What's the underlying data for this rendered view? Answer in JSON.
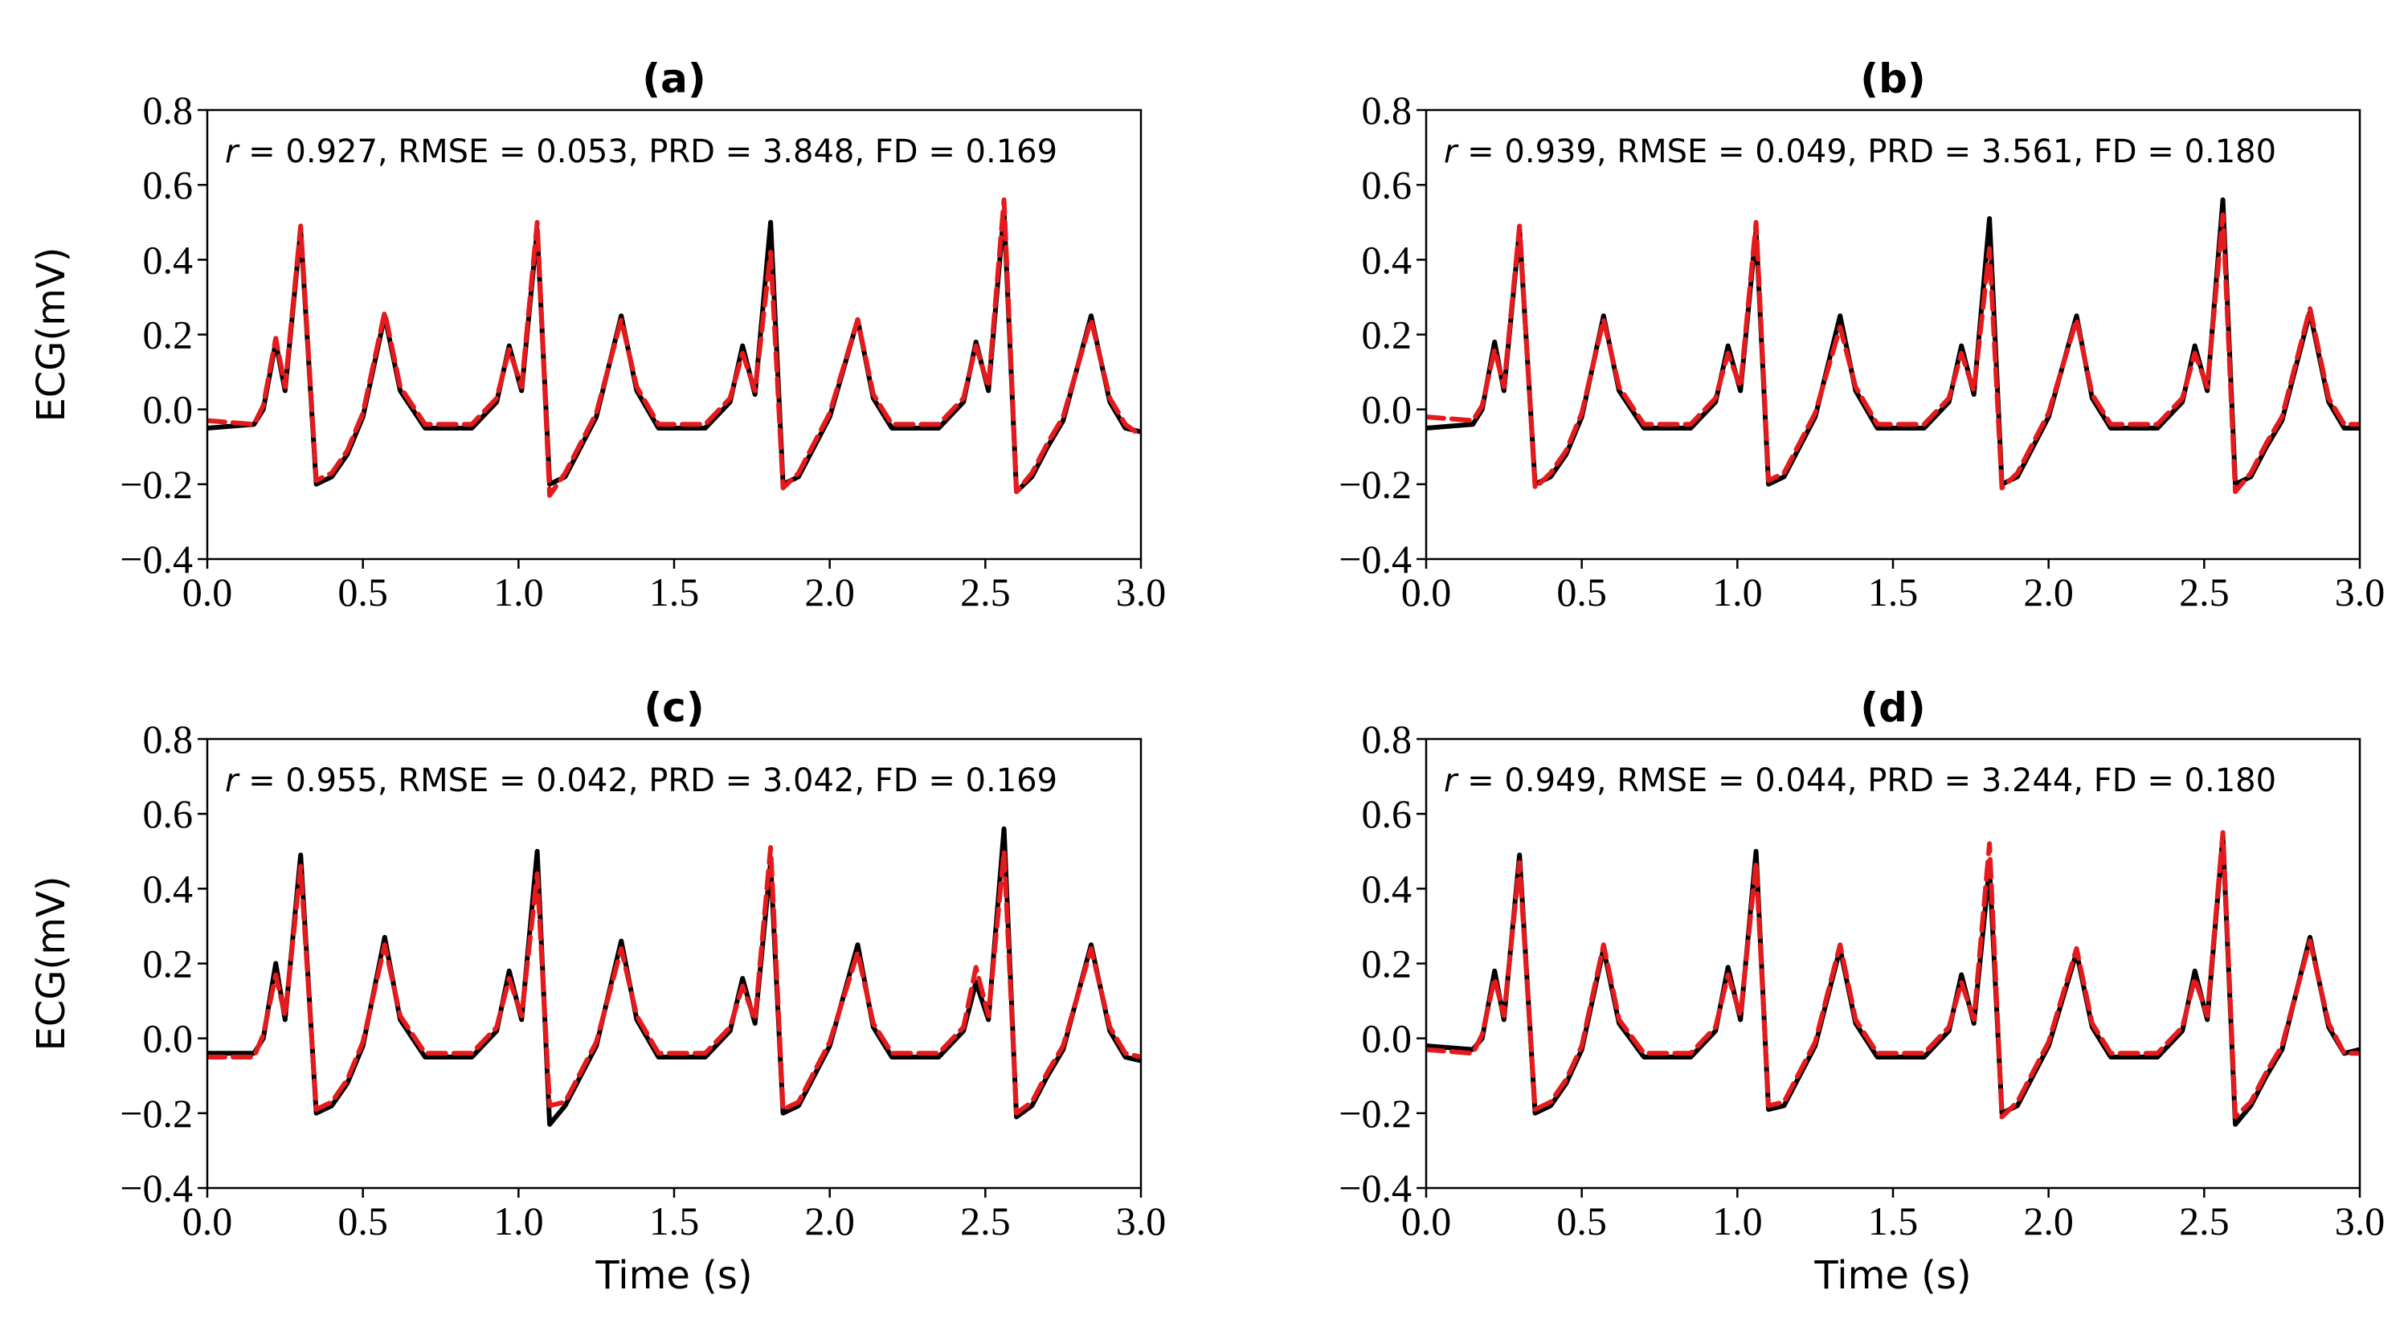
{
  "chart_data": [
    {
      "type": "line",
      "title": "(a)",
      "annotation": {
        "var": "r",
        "text": " = 0.927, RMSE = 0.053, PRD = 3.848, FD = 0.169"
      },
      "xlabel": "",
      "ylabel": "ECG(mV)",
      "xlim": [
        0.0,
        3.0
      ],
      "ylim": [
        -0.4,
        0.8
      ],
      "xticks": [
        "0.0",
        "0.5",
        "1.0",
        "1.5",
        "2.0",
        "2.5",
        "3.0"
      ],
      "yticks": [
        "−0.4",
        "−0.2",
        "0.0",
        "0.2",
        "0.4",
        "0.6",
        "0.8"
      ],
      "grid": false,
      "series": [
        {
          "style": "solid",
          "color": "#000000",
          "x": [
            0.0,
            0.15,
            0.18,
            0.22,
            0.25,
            0.3,
            0.35,
            0.4,
            0.45,
            0.5,
            0.57,
            0.62,
            0.7,
            0.85,
            0.93,
            0.97,
            1.01,
            1.06,
            1.1,
            1.15,
            1.2,
            1.25,
            1.33,
            1.38,
            1.45,
            1.6,
            1.68,
            1.72,
            1.76,
            1.81,
            1.85,
            1.9,
            1.95,
            2.0,
            2.09,
            2.14,
            2.2,
            2.35,
            2.43,
            2.47,
            2.51,
            2.56,
            2.6,
            2.65,
            2.7,
            2.75,
            2.84,
            2.9,
            2.95,
            3.0
          ],
          "y": [
            -0.05,
            -0.04,
            0.0,
            0.18,
            0.05,
            0.48,
            -0.2,
            -0.18,
            -0.12,
            -0.02,
            0.25,
            0.05,
            -0.05,
            -0.05,
            0.02,
            0.17,
            0.05,
            0.48,
            -0.2,
            -0.18,
            -0.1,
            -0.02,
            0.25,
            0.05,
            -0.05,
            -0.05,
            0.02,
            0.17,
            0.04,
            0.5,
            -0.2,
            -0.18,
            -0.1,
            -0.02,
            0.24,
            0.03,
            -0.05,
            -0.05,
            0.02,
            0.18,
            0.05,
            0.53,
            -0.22,
            -0.18,
            -0.1,
            -0.03,
            0.25,
            0.02,
            -0.05,
            -0.06
          ]
        },
        {
          "style": "dashed",
          "color": "#e41a1c",
          "x": [
            0.0,
            0.15,
            0.18,
            0.22,
            0.25,
            0.3,
            0.35,
            0.4,
            0.45,
            0.5,
            0.57,
            0.62,
            0.7,
            0.85,
            0.93,
            0.97,
            1.01,
            1.06,
            1.1,
            1.15,
            1.2,
            1.25,
            1.33,
            1.38,
            1.45,
            1.6,
            1.68,
            1.72,
            1.76,
            1.81,
            1.85,
            1.9,
            1.95,
            2.0,
            2.09,
            2.14,
            2.2,
            2.35,
            2.43,
            2.47,
            2.51,
            2.56,
            2.6,
            2.65,
            2.7,
            2.75,
            2.84,
            2.9,
            2.95,
            3.0
          ],
          "y": [
            -0.03,
            -0.04,
            0.01,
            0.19,
            0.06,
            0.49,
            -0.19,
            -0.17,
            -0.11,
            -0.01,
            0.26,
            0.06,
            -0.04,
            -0.04,
            0.03,
            0.16,
            0.06,
            0.5,
            -0.23,
            -0.17,
            -0.09,
            -0.01,
            0.24,
            0.06,
            -0.04,
            -0.04,
            0.03,
            0.15,
            0.05,
            0.42,
            -0.21,
            -0.17,
            -0.09,
            -0.01,
            0.24,
            0.04,
            -0.04,
            -0.04,
            0.03,
            0.17,
            0.06,
            0.56,
            -0.22,
            -0.17,
            -0.09,
            -0.02,
            0.24,
            0.03,
            -0.04,
            -0.07
          ]
        }
      ]
    },
    {
      "type": "line",
      "title": "(b)",
      "annotation": {
        "var": "r",
        "text": " = 0.939, RMSE = 0.049, PRD = 3.561, FD = 0.180"
      },
      "xlabel": "",
      "ylabel": "",
      "xlim": [
        0.0,
        3.0
      ],
      "ylim": [
        -0.4,
        0.8
      ],
      "xticks": [
        "0.0",
        "0.5",
        "1.0",
        "1.5",
        "2.0",
        "2.5",
        "3.0"
      ],
      "yticks": [
        "−0.4",
        "−0.2",
        "0.0",
        "0.2",
        "0.4",
        "0.6",
        "0.8"
      ],
      "grid": false,
      "series": [
        {
          "style": "solid",
          "color": "#000000",
          "x": [
            0.0,
            0.15,
            0.18,
            0.22,
            0.25,
            0.3,
            0.35,
            0.4,
            0.45,
            0.5,
            0.57,
            0.62,
            0.7,
            0.85,
            0.93,
            0.97,
            1.01,
            1.06,
            1.1,
            1.15,
            1.2,
            1.25,
            1.33,
            1.38,
            1.45,
            1.6,
            1.68,
            1.72,
            1.76,
            1.81,
            1.85,
            1.9,
            1.95,
            2.0,
            2.09,
            2.14,
            2.2,
            2.35,
            2.43,
            2.47,
            2.51,
            2.56,
            2.6,
            2.65,
            2.7,
            2.75,
            2.84,
            2.9,
            2.95,
            3.0
          ],
          "y": [
            -0.05,
            -0.04,
            0.0,
            0.18,
            0.05,
            0.48,
            -0.2,
            -0.18,
            -0.12,
            -0.02,
            0.25,
            0.05,
            -0.05,
            -0.05,
            0.02,
            0.17,
            0.05,
            0.48,
            -0.2,
            -0.18,
            -0.1,
            -0.02,
            0.25,
            0.05,
            -0.05,
            -0.05,
            0.02,
            0.17,
            0.04,
            0.51,
            -0.2,
            -0.18,
            -0.1,
            -0.02,
            0.25,
            0.03,
            -0.05,
            -0.05,
            0.02,
            0.17,
            0.05,
            0.56,
            -0.2,
            -0.18,
            -0.1,
            -0.03,
            0.26,
            0.02,
            -0.05,
            -0.05
          ]
        },
        {
          "style": "dashed",
          "color": "#e41a1c",
          "x": [
            0.0,
            0.15,
            0.18,
            0.22,
            0.25,
            0.3,
            0.35,
            0.4,
            0.45,
            0.5,
            0.57,
            0.62,
            0.7,
            0.85,
            0.93,
            0.97,
            1.01,
            1.06,
            1.1,
            1.15,
            1.2,
            1.25,
            1.33,
            1.38,
            1.45,
            1.6,
            1.68,
            1.72,
            1.76,
            1.81,
            1.85,
            1.9,
            1.95,
            2.0,
            2.09,
            2.14,
            2.2,
            2.35,
            2.43,
            2.47,
            2.51,
            2.56,
            2.6,
            2.65,
            2.7,
            2.75,
            2.84,
            2.9,
            2.95,
            3.0
          ],
          "y": [
            -0.02,
            -0.03,
            0.01,
            0.16,
            0.06,
            0.49,
            -0.21,
            -0.17,
            -0.11,
            -0.01,
            0.24,
            0.06,
            -0.04,
            -0.04,
            0.03,
            0.15,
            0.06,
            0.5,
            -0.19,
            -0.17,
            -0.09,
            -0.01,
            0.22,
            0.06,
            -0.04,
            -0.04,
            0.03,
            0.15,
            0.05,
            0.43,
            -0.21,
            -0.17,
            -0.09,
            -0.01,
            0.24,
            0.04,
            -0.04,
            -0.04,
            0.03,
            0.15,
            0.06,
            0.52,
            -0.22,
            -0.17,
            -0.09,
            -0.02,
            0.27,
            0.03,
            -0.04,
            -0.04
          ]
        }
      ]
    },
    {
      "type": "line",
      "title": "(c)",
      "annotation": {
        "var": "r",
        "text": " = 0.955, RMSE = 0.042, PRD = 3.042, FD = 0.169"
      },
      "xlabel": "Time (s)",
      "ylabel": "ECG(mV)",
      "xlim": [
        0.0,
        3.0
      ],
      "ylim": [
        -0.4,
        0.8
      ],
      "xticks": [
        "0.0",
        "0.5",
        "1.0",
        "1.5",
        "2.0",
        "2.5",
        "3.0"
      ],
      "yticks": [
        "−0.4",
        "−0.2",
        "0.0",
        "0.2",
        "0.4",
        "0.6",
        "0.8"
      ],
      "grid": false,
      "series": [
        {
          "style": "solid",
          "color": "#000000",
          "x": [
            0.0,
            0.15,
            0.18,
            0.22,
            0.25,
            0.3,
            0.35,
            0.4,
            0.45,
            0.5,
            0.57,
            0.62,
            0.7,
            0.85,
            0.93,
            0.97,
            1.01,
            1.06,
            1.1,
            1.15,
            1.2,
            1.25,
            1.33,
            1.38,
            1.45,
            1.6,
            1.68,
            1.72,
            1.76,
            1.81,
            1.85,
            1.9,
            1.95,
            2.0,
            2.09,
            2.14,
            2.2,
            2.35,
            2.43,
            2.47,
            2.51,
            2.56,
            2.6,
            2.65,
            2.7,
            2.75,
            2.84,
            2.9,
            2.95,
            3.0
          ],
          "y": [
            -0.04,
            -0.04,
            0.0,
            0.2,
            0.05,
            0.49,
            -0.2,
            -0.18,
            -0.12,
            -0.02,
            0.27,
            0.05,
            -0.05,
            -0.05,
            0.02,
            0.18,
            0.05,
            0.5,
            -0.23,
            -0.18,
            -0.1,
            -0.02,
            0.26,
            0.05,
            -0.05,
            -0.05,
            0.02,
            0.16,
            0.04,
            0.47,
            -0.2,
            -0.18,
            -0.1,
            -0.02,
            0.25,
            0.03,
            -0.05,
            -0.05,
            0.02,
            0.15,
            0.05,
            0.56,
            -0.21,
            -0.18,
            -0.1,
            -0.03,
            0.25,
            0.02,
            -0.05,
            -0.06
          ]
        },
        {
          "style": "dashed",
          "color": "#e41a1c",
          "x": [
            0.0,
            0.15,
            0.18,
            0.22,
            0.25,
            0.3,
            0.35,
            0.4,
            0.45,
            0.5,
            0.57,
            0.62,
            0.7,
            0.85,
            0.93,
            0.97,
            1.01,
            1.06,
            1.1,
            1.15,
            1.2,
            1.25,
            1.33,
            1.38,
            1.45,
            1.6,
            1.68,
            1.72,
            1.76,
            1.81,
            1.85,
            1.9,
            1.95,
            2.0,
            2.09,
            2.14,
            2.2,
            2.35,
            2.43,
            2.47,
            2.51,
            2.56,
            2.6,
            2.65,
            2.7,
            2.75,
            2.84,
            2.9,
            2.95,
            3.0
          ],
          "y": [
            -0.05,
            -0.05,
            0.01,
            0.17,
            0.06,
            0.46,
            -0.19,
            -0.17,
            -0.11,
            -0.01,
            0.25,
            0.06,
            -0.04,
            -0.04,
            0.03,
            0.16,
            0.06,
            0.44,
            -0.18,
            -0.17,
            -0.09,
            -0.01,
            0.24,
            0.06,
            -0.04,
            -0.04,
            0.03,
            0.14,
            0.05,
            0.51,
            -0.19,
            -0.17,
            -0.09,
            -0.01,
            0.23,
            0.04,
            -0.04,
            -0.04,
            0.03,
            0.19,
            0.06,
            0.5,
            -0.2,
            -0.17,
            -0.09,
            -0.02,
            0.24,
            0.03,
            -0.04,
            -0.05
          ]
        }
      ]
    },
    {
      "type": "line",
      "title": "(d)",
      "annotation": {
        "var": "r",
        "text": " = 0.949, RMSE = 0.044, PRD = 3.244, FD = 0.180"
      },
      "xlabel": "Time (s)",
      "ylabel": "",
      "xlim": [
        0.0,
        3.0
      ],
      "ylim": [
        -0.4,
        0.8
      ],
      "xticks": [
        "0.0",
        "0.5",
        "1.0",
        "1.5",
        "2.0",
        "2.5",
        "3.0"
      ],
      "yticks": [
        "−0.4",
        "−0.2",
        "0.0",
        "0.2",
        "0.4",
        "0.6",
        "0.8"
      ],
      "grid": false,
      "series": [
        {
          "style": "solid",
          "color": "#000000",
          "x": [
            0.0,
            0.15,
            0.18,
            0.22,
            0.25,
            0.3,
            0.35,
            0.4,
            0.45,
            0.5,
            0.57,
            0.62,
            0.7,
            0.85,
            0.93,
            0.97,
            1.01,
            1.06,
            1.1,
            1.15,
            1.2,
            1.25,
            1.33,
            1.38,
            1.45,
            1.6,
            1.68,
            1.72,
            1.76,
            1.81,
            1.85,
            1.9,
            1.95,
            2.0,
            2.09,
            2.14,
            2.2,
            2.35,
            2.43,
            2.47,
            2.51,
            2.56,
            2.6,
            2.65,
            2.7,
            2.75,
            2.84,
            2.9,
            2.95,
            3.0
          ],
          "y": [
            -0.02,
            -0.03,
            0.0,
            0.18,
            0.05,
            0.49,
            -0.2,
            -0.18,
            -0.12,
            -0.03,
            0.24,
            0.04,
            -0.05,
            -0.05,
            0.02,
            0.19,
            0.05,
            0.5,
            -0.19,
            -0.18,
            -0.1,
            -0.02,
            0.24,
            0.04,
            -0.05,
            -0.05,
            0.02,
            0.17,
            0.04,
            0.46,
            -0.2,
            -0.18,
            -0.1,
            -0.02,
            0.23,
            0.03,
            -0.05,
            -0.05,
            0.02,
            0.18,
            0.05,
            0.54,
            -0.23,
            -0.18,
            -0.1,
            -0.03,
            0.27,
            0.03,
            -0.04,
            -0.03
          ]
        },
        {
          "style": "dashed",
          "color": "#e41a1c",
          "x": [
            0.0,
            0.15,
            0.18,
            0.22,
            0.25,
            0.3,
            0.35,
            0.4,
            0.45,
            0.5,
            0.57,
            0.62,
            0.7,
            0.85,
            0.93,
            0.97,
            1.01,
            1.06,
            1.1,
            1.15,
            1.2,
            1.25,
            1.33,
            1.38,
            1.45,
            1.6,
            1.68,
            1.72,
            1.76,
            1.81,
            1.85,
            1.9,
            1.95,
            2.0,
            2.09,
            2.14,
            2.2,
            2.35,
            2.43,
            2.47,
            2.51,
            2.56,
            2.6,
            2.65,
            2.7,
            2.75,
            2.84,
            2.9,
            2.95,
            3.0
          ],
          "y": [
            -0.03,
            -0.04,
            0.01,
            0.16,
            0.06,
            0.47,
            -0.19,
            -0.17,
            -0.11,
            -0.02,
            0.25,
            0.05,
            -0.04,
            -0.04,
            0.03,
            0.17,
            0.06,
            0.47,
            -0.18,
            -0.17,
            -0.09,
            -0.01,
            0.25,
            0.05,
            -0.04,
            -0.04,
            0.03,
            0.15,
            0.05,
            0.52,
            -0.21,
            -0.17,
            -0.09,
            -0.01,
            0.24,
            0.04,
            -0.04,
            -0.04,
            0.03,
            0.16,
            0.06,
            0.55,
            -0.21,
            -0.17,
            -0.09,
            -0.02,
            0.26,
            0.04,
            -0.04,
            -0.04
          ]
        }
      ]
    }
  ]
}
